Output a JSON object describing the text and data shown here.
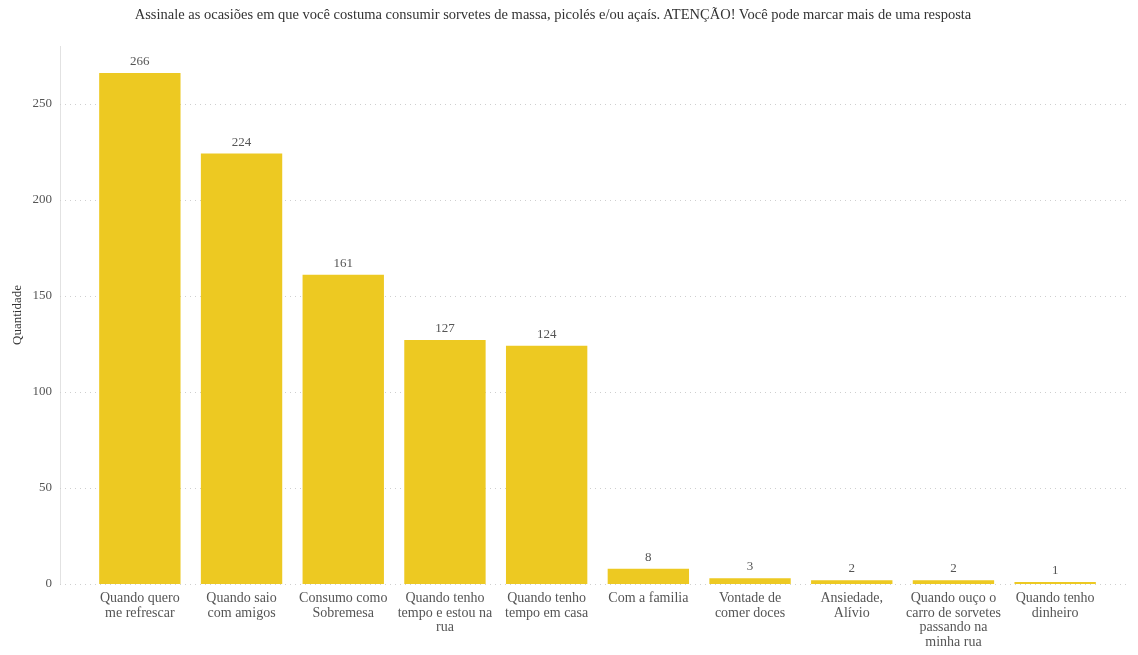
{
  "chart_data": {
    "type": "bar",
    "title": "Assinale as ocasiões em que você costuma consumir sorvetes de massa, picolés e/ou açaís. ATENÇÃO! Você pode marcar mais de uma resposta",
    "ylabel": "Quantidade",
    "categories": [
      "Quando quero me refrescar",
      "Quando saio com amigos",
      "Consumo como Sobremesa",
      "Quando tenho tempo e estou na rua",
      "Quando tenho tempo em casa",
      "Com a familia",
      "Vontade de comer doces",
      "Ansiedade, Alívio",
      "Quando ouço o carro de sorvetes passando na minha rua",
      "Quando tenho dinheiro"
    ],
    "values": [
      266,
      224,
      161,
      127,
      124,
      8,
      3,
      2,
      2,
      1
    ],
    "color": "#edc922",
    "ylim": [
      0,
      280
    ],
    "yticks": [
      0,
      50,
      100,
      150,
      200,
      250
    ],
    "grid": "y",
    "data_labels": true
  }
}
